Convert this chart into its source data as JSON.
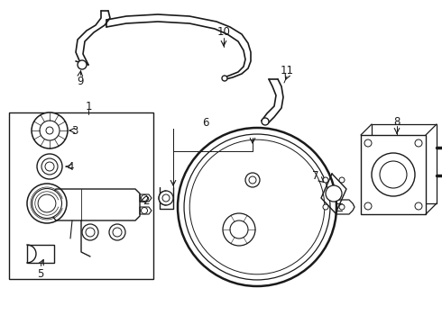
{
  "bg_color": "#ffffff",
  "lc": "#1a1a1a",
  "lw": 1.1,
  "fig_w": 4.9,
  "fig_h": 3.6,
  "dpi": 100,
  "xlim": [
    0,
    490
  ],
  "ylim": [
    0,
    360
  ]
}
